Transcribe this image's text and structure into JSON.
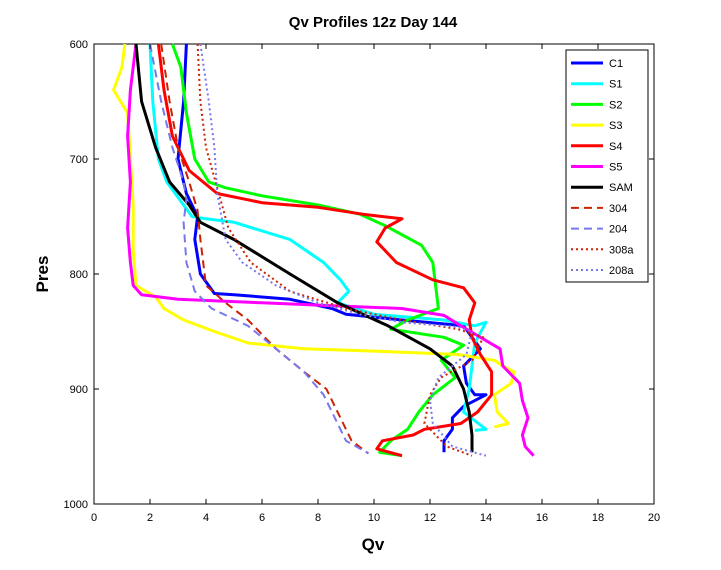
{
  "chart_data": {
    "type": "line",
    "title": "Qv Profiles 12z Day 144",
    "xlabel": "Qv",
    "ylabel": "Pres",
    "xlim": [
      0,
      20
    ],
    "ylim": [
      600,
      1000
    ],
    "y_reversed": true,
    "grid": false,
    "legend_position": "top-right",
    "x_ticks": [
      "0",
      "2",
      "4",
      "6",
      "8",
      "10",
      "12",
      "14",
      "16",
      "18",
      "20"
    ],
    "y_ticks": [
      "600",
      "700",
      "800",
      "900",
      "1000"
    ],
    "series": [
      {
        "name": "C1",
        "color": "#0000ff",
        "dash": "solid",
        "points": [
          [
            3.3,
            600
          ],
          [
            3.2,
            650
          ],
          [
            3.0,
            700
          ],
          [
            3.3,
            730
          ],
          [
            3.7,
            750
          ],
          [
            3.6,
            770
          ],
          [
            3.8,
            800
          ],
          [
            4.3,
            817
          ],
          [
            5,
            818
          ],
          [
            7,
            822
          ],
          [
            8.5,
            830
          ],
          [
            9,
            835
          ],
          [
            11,
            840
          ],
          [
            13.2,
            845
          ],
          [
            13.8,
            865
          ],
          [
            13.2,
            880
          ],
          [
            13.3,
            895
          ],
          [
            13.6,
            905
          ],
          [
            14.0,
            905
          ],
          [
            13.2,
            915
          ],
          [
            12.8,
            925
          ],
          [
            12.8,
            935
          ],
          [
            12.5,
            945
          ],
          [
            12.5,
            955
          ]
        ]
      },
      {
        "name": "S1",
        "color": "#00ffff",
        "dash": "solid",
        "points": [
          [
            2,
            600
          ],
          [
            2.1,
            650
          ],
          [
            2.3,
            700
          ],
          [
            2.6,
            720
          ],
          [
            3.2,
            740
          ],
          [
            3.5,
            750
          ],
          [
            4,
            752
          ],
          [
            5,
            755
          ],
          [
            7,
            770
          ],
          [
            8.2,
            790
          ],
          [
            8.8,
            805
          ],
          [
            9.1,
            815
          ],
          [
            8.7,
            825
          ],
          [
            10,
            835
          ],
          [
            12.5,
            840
          ],
          [
            13.6,
            845
          ],
          [
            14.0,
            842
          ],
          [
            13.6,
            860
          ],
          [
            13.5,
            880
          ],
          [
            13.4,
            900
          ],
          [
            13.2,
            920
          ],
          [
            14.0,
            935
          ],
          [
            13.6,
            936
          ]
        ]
      },
      {
        "name": "S2",
        "color": "#00ff00",
        "dash": "solid",
        "points": [
          [
            2.8,
            600
          ],
          [
            3.1,
            620
          ],
          [
            3.3,
            660
          ],
          [
            3.6,
            700
          ],
          [
            4.1,
            720
          ],
          [
            4.7,
            725
          ],
          [
            6,
            732
          ],
          [
            8,
            740
          ],
          [
            9.5,
            748
          ],
          [
            10.4,
            758
          ],
          [
            11.7,
            775
          ],
          [
            12.1,
            790
          ],
          [
            12.2,
            810
          ],
          [
            12.3,
            830
          ],
          [
            11.2,
            840
          ],
          [
            10.6,
            848
          ],
          [
            12.5,
            855
          ],
          [
            13.2,
            862
          ],
          [
            12.4,
            875
          ],
          [
            12.9,
            890
          ],
          [
            12.1,
            905
          ],
          [
            11.6,
            920
          ],
          [
            11.2,
            935
          ],
          [
            10.6,
            945
          ],
          [
            10.2,
            955
          ],
          [
            11,
            958
          ]
        ]
      },
      {
        "name": "S3",
        "color": "#ffff00",
        "dash": "solid",
        "points": [
          [
            1.1,
            600
          ],
          [
            1.0,
            620
          ],
          [
            0.7,
            640
          ],
          [
            1.2,
            660
          ],
          [
            1.3,
            700
          ],
          [
            1.4,
            740
          ],
          [
            1.4,
            780
          ],
          [
            1.5,
            810
          ],
          [
            2.2,
            820
          ],
          [
            2.5,
            830
          ],
          [
            3.2,
            840
          ],
          [
            4.3,
            850
          ],
          [
            5.5,
            860
          ],
          [
            7.5,
            865
          ],
          [
            10,
            867
          ],
          [
            13,
            870
          ],
          [
            14.3,
            875
          ],
          [
            14.6,
            880
          ],
          [
            15.0,
            885
          ],
          [
            14.9,
            895
          ],
          [
            14.3,
            905
          ],
          [
            14.4,
            920
          ],
          [
            14.8,
            930
          ],
          [
            14.3,
            933
          ]
        ]
      },
      {
        "name": "S4",
        "color": "#ff0000",
        "dash": "solid",
        "points": [
          [
            2.3,
            600
          ],
          [
            2.5,
            640
          ],
          [
            2.8,
            680
          ],
          [
            3.4,
            710
          ],
          [
            4.4,
            730
          ],
          [
            6,
            738
          ],
          [
            8,
            742
          ],
          [
            9.6,
            748
          ],
          [
            11.0,
            752
          ],
          [
            10.4,
            760
          ],
          [
            10.1,
            772
          ],
          [
            10.8,
            790
          ],
          [
            12.1,
            805
          ],
          [
            13.2,
            812
          ],
          [
            13.6,
            825
          ],
          [
            13.4,
            840
          ],
          [
            13.5,
            855
          ],
          [
            13.8,
            870
          ],
          [
            14.2,
            885
          ],
          [
            14.2,
            905
          ],
          [
            13.7,
            920
          ],
          [
            13.1,
            930
          ],
          [
            11.8,
            935
          ],
          [
            11.4,
            940
          ],
          [
            10.3,
            945
          ],
          [
            10.1,
            952
          ],
          [
            11,
            958
          ]
        ]
      },
      {
        "name": "S5",
        "color": "#ff00ff",
        "dash": "solid",
        "points": [
          [
            1.5,
            600
          ],
          [
            1.3,
            640
          ],
          [
            1.2,
            680
          ],
          [
            1.3,
            720
          ],
          [
            1.2,
            760
          ],
          [
            1.3,
            790
          ],
          [
            1.4,
            810
          ],
          [
            1.7,
            818
          ],
          [
            3,
            822
          ],
          [
            6,
            825
          ],
          [
            8,
            827
          ],
          [
            11,
            830
          ],
          [
            12.5,
            836
          ],
          [
            13.1,
            845
          ],
          [
            13.8,
            855
          ],
          [
            14.5,
            865
          ],
          [
            14.6,
            880
          ],
          [
            15.2,
            895
          ],
          [
            15.3,
            910
          ],
          [
            15.5,
            925
          ],
          [
            15.3,
            940
          ],
          [
            15.4,
            950
          ],
          [
            15.7,
            958
          ]
        ]
      },
      {
        "name": "SAM",
        "color": "#000000",
        "dash": "solid",
        "points": [
          [
            1.5,
            600
          ],
          [
            1.7,
            650
          ],
          [
            2.2,
            690
          ],
          [
            2.7,
            720
          ],
          [
            3.4,
            740
          ],
          [
            3.8,
            755
          ],
          [
            5,
            770
          ],
          [
            7,
            800
          ],
          [
            8.7,
            825
          ],
          [
            10.5,
            845
          ],
          [
            12.0,
            865
          ],
          [
            12.8,
            880
          ],
          [
            13.2,
            900
          ],
          [
            13.4,
            920
          ],
          [
            13.5,
            940
          ],
          [
            13.5,
            955
          ]
        ]
      },
      {
        "name": "304",
        "color": "#cc2200",
        "dash": "dashed",
        "points": [
          [
            2.4,
            600
          ],
          [
            2.7,
            650
          ],
          [
            3.0,
            690
          ],
          [
            3.4,
            720
          ],
          [
            3.7,
            745
          ],
          [
            3.8,
            770
          ],
          [
            4.0,
            810
          ],
          [
            4.7,
            825
          ],
          [
            5.5,
            840
          ],
          [
            6.5,
            865
          ],
          [
            7.5,
            885
          ],
          [
            8.3,
            900
          ],
          [
            8.8,
            925
          ],
          [
            9.2,
            945
          ],
          [
            9.8,
            956
          ]
        ]
      },
      {
        "name": "204",
        "color": "#7777ee",
        "dash": "dashed",
        "points": [
          [
            2,
            600
          ],
          [
            2.4,
            650
          ],
          [
            2.8,
            690
          ],
          [
            3.2,
            720
          ],
          [
            3.3,
            735
          ],
          [
            3.2,
            755
          ],
          [
            3.3,
            790
          ],
          [
            3.6,
            815
          ],
          [
            4.2,
            830
          ],
          [
            5.5,
            845
          ],
          [
            6.5,
            865
          ],
          [
            7.5,
            885
          ],
          [
            8.2,
            905
          ],
          [
            8.6,
            925
          ],
          [
            9.0,
            945
          ],
          [
            9.8,
            956
          ]
        ]
      },
      {
        "name": "308a",
        "color": "#cc2200",
        "dash": "dotted",
        "points": [
          [
            3.7,
            600
          ],
          [
            3.8,
            650
          ],
          [
            4.0,
            690
          ],
          [
            4.4,
            725
          ],
          [
            4.8,
            760
          ],
          [
            5.6,
            790
          ],
          [
            7.0,
            815
          ],
          [
            9.0,
            830
          ],
          [
            11,
            840
          ],
          [
            13,
            848
          ],
          [
            13.9,
            855
          ],
          [
            13.5,
            875
          ],
          [
            12.4,
            890
          ],
          [
            12.0,
            905
          ],
          [
            11.8,
            930
          ],
          [
            12.6,
            950
          ],
          [
            13.5,
            958
          ]
        ]
      },
      {
        "name": "208a",
        "color": "#7777ee",
        "dash": "dotted",
        "points": [
          [
            3.8,
            600
          ],
          [
            4.1,
            650
          ],
          [
            4.3,
            690
          ],
          [
            4.4,
            730
          ],
          [
            4.7,
            770
          ],
          [
            5.3,
            790
          ],
          [
            6.5,
            810
          ],
          [
            8,
            825
          ],
          [
            9.5,
            835
          ],
          [
            11,
            842
          ],
          [
            13,
            846
          ],
          [
            13.5,
            850
          ],
          [
            13.3,
            870
          ],
          [
            12.3,
            890
          ],
          [
            12.0,
            910
          ],
          [
            12.1,
            930
          ],
          [
            12.8,
            950
          ],
          [
            14,
            958
          ]
        ]
      }
    ]
  }
}
